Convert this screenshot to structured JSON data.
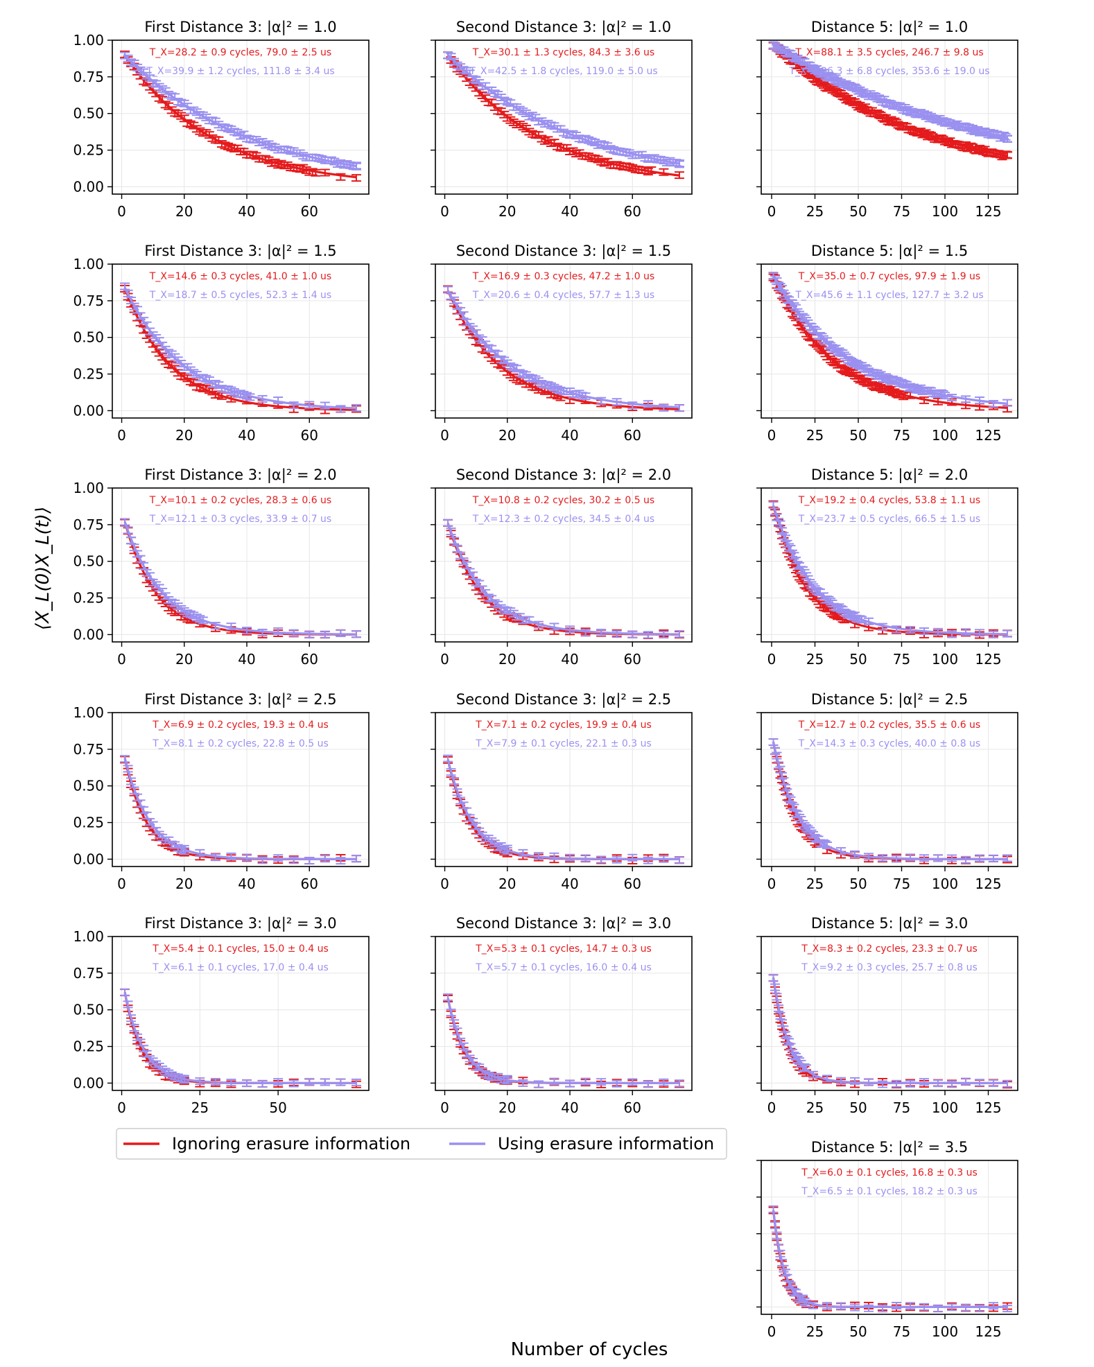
{
  "figure": {
    "ylabel": "⟨X_L(0)X_L(t)⟩",
    "xlabel": "Number of cycles",
    "legend": {
      "location": "upper-left of grid, below row 5",
      "entries": [
        {
          "label": "Ignoring erasure information",
          "color": "#e41a1c"
        },
        {
          "label": "Using erasure information",
          "color": "#9a90f0"
        }
      ]
    },
    "yticks": [
      "0.00",
      "0.25",
      "0.50",
      "0.75",
      "1.00"
    ],
    "colors": {
      "ignore": "#e41a1c",
      "use": "#9a90f0",
      "grid": "#e6e6e6",
      "axis": "#000000"
    }
  },
  "chart_data": [
    {
      "type": "line",
      "title": "First Distance 3: |α|² = 1.0",
      "xticks": [
        0,
        20,
        40,
        60
      ],
      "xlim": [
        -3,
        79
      ],
      "ylim": [
        -0.05,
        1.0
      ],
      "grid": true,
      "xmax": 75,
      "series": [
        {
          "name": "Ignoring erasure information",
          "y0": 0.9,
          "tau": 28.2,
          "annotation": "T_X=28.2 ± 0.9 cycles, 79.0 ± 2.5 us"
        },
        {
          "name": "Using erasure information",
          "y0": 0.9,
          "tau": 39.9,
          "annotation": "T_X=39.9 ± 1.2 cycles, 111.8 ± 3.4 us"
        }
      ]
    },
    {
      "type": "line",
      "title": "Second Distance 3: |α|² = 1.0",
      "xticks": [
        0,
        20,
        40,
        60
      ],
      "xlim": [
        -3,
        79
      ],
      "ylim": [
        -0.05,
        1.0
      ],
      "grid": true,
      "xmax": 75,
      "series": [
        {
          "name": "Ignoring erasure information",
          "y0": 0.9,
          "tau": 30.1,
          "annotation": "T_X=30.1 ± 1.3 cycles, 84.3 ± 3.6 us"
        },
        {
          "name": "Using erasure information",
          "y0": 0.9,
          "tau": 42.5,
          "annotation": "T_X=42.5 ± 1.8 cycles, 119.0 ± 5.0 us"
        }
      ]
    },
    {
      "type": "line",
      "title": "Distance 5: |α|² = 1.0",
      "xticks": [
        0,
        25,
        50,
        75,
        100,
        125
      ],
      "xlim": [
        -6,
        142
      ],
      "ylim": [
        -0.05,
        1.0
      ],
      "grid": true,
      "xmax": 136,
      "series": [
        {
          "name": "Ignoring erasure information",
          "y0": 0.97,
          "tau": 88.1,
          "annotation": "T_X=88.1 ± 3.5 cycles, 246.7 ± 9.8 us"
        },
        {
          "name": "Using erasure information",
          "y0": 0.97,
          "tau": 126.3,
          "annotation": "T_X=126.3 ± 6.8 cycles, 353.6 ± 19.0 us"
        }
      ]
    },
    {
      "type": "line",
      "title": "First Distance 3: |α|² = 1.5",
      "xticks": [
        0,
        20,
        40,
        60
      ],
      "xlim": [
        -3,
        79
      ],
      "ylim": [
        -0.05,
        1.0
      ],
      "grid": true,
      "xmax": 75,
      "series": [
        {
          "name": "Ignoring erasure information",
          "y0": 0.84,
          "tau": 14.6,
          "annotation": "T_X=14.6 ± 0.3 cycles, 41.0 ± 1.0 us"
        },
        {
          "name": "Using erasure information",
          "y0": 0.84,
          "tau": 18.7,
          "annotation": "T_X=18.7 ± 0.5 cycles, 52.3 ± 1.4 us"
        }
      ]
    },
    {
      "type": "line",
      "title": "Second Distance 3: |α|² = 1.5",
      "xticks": [
        0,
        20,
        40,
        60
      ],
      "xlim": [
        -3,
        79
      ],
      "ylim": [
        -0.05,
        1.0
      ],
      "grid": true,
      "xmax": 75,
      "series": [
        {
          "name": "Ignoring erasure information",
          "y0": 0.82,
          "tau": 16.9,
          "annotation": "T_X=16.9 ± 0.3 cycles, 47.2 ± 1.0 us"
        },
        {
          "name": "Using erasure information",
          "y0": 0.82,
          "tau": 20.6,
          "annotation": "T_X=20.6 ± 0.4 cycles, 57.7 ± 1.3 us"
        }
      ]
    },
    {
      "type": "line",
      "title": "Distance 5: |α|² = 1.5",
      "xticks": [
        0,
        25,
        50,
        75,
        100,
        125
      ],
      "xlim": [
        -6,
        142
      ],
      "ylim": [
        -0.05,
        1.0
      ],
      "grid": true,
      "xmax": 136,
      "series": [
        {
          "name": "Ignoring erasure information",
          "y0": 0.92,
          "tau": 35.0,
          "annotation": "T_X=35.0 ± 0.7 cycles, 97.9 ± 1.9 us"
        },
        {
          "name": "Using erasure information",
          "y0": 0.92,
          "tau": 45.6,
          "annotation": "T_X=45.6 ± 1.1 cycles, 127.7 ± 3.2 us"
        }
      ]
    },
    {
      "type": "line",
      "title": "First Distance 3: |α|² = 2.0",
      "xticks": [
        0,
        20,
        40,
        60
      ],
      "xlim": [
        -3,
        79
      ],
      "ylim": [
        -0.05,
        1.0
      ],
      "grid": true,
      "xmax": 75,
      "series": [
        {
          "name": "Ignoring erasure information",
          "y0": 0.77,
          "tau": 10.1,
          "annotation": "T_X=10.1 ± 0.2 cycles, 28.3 ± 0.6 us"
        },
        {
          "name": "Using erasure information",
          "y0": 0.77,
          "tau": 12.1,
          "annotation": "T_X=12.1 ± 0.3 cycles, 33.9 ± 0.7 us"
        }
      ]
    },
    {
      "type": "line",
      "title": "Second Distance 3: |α|² = 2.0",
      "xticks": [
        0,
        20,
        40,
        60
      ],
      "xlim": [
        -3,
        79
      ],
      "ylim": [
        -0.05,
        1.0
      ],
      "grid": true,
      "xmax": 75,
      "series": [
        {
          "name": "Ignoring erasure information",
          "y0": 0.76,
          "tau": 10.8,
          "annotation": "T_X=10.8 ± 0.2 cycles, 30.2 ± 0.5 us"
        },
        {
          "name": "Using erasure information",
          "y0": 0.76,
          "tau": 12.3,
          "annotation": "T_X=12.3 ± 0.2 cycles, 34.5 ± 0.4 us"
        }
      ]
    },
    {
      "type": "line",
      "title": "Distance 5: |α|² = 2.0",
      "xticks": [
        0,
        25,
        50,
        75,
        100,
        125
      ],
      "xlim": [
        -6,
        142
      ],
      "ylim": [
        -0.05,
        1.0
      ],
      "grid": true,
      "xmax": 136,
      "series": [
        {
          "name": "Ignoring erasure information",
          "y0": 0.88,
          "tau": 19.2,
          "annotation": "T_X=19.2 ± 0.4 cycles, 53.8 ± 1.1 us"
        },
        {
          "name": "Using erasure information",
          "y0": 0.88,
          "tau": 23.7,
          "annotation": "T_X=23.7 ± 0.5 cycles, 66.5 ± 1.5 us"
        }
      ]
    },
    {
      "type": "line",
      "title": "First Distance 3: |α|² = 2.5",
      "xticks": [
        0,
        20,
        40,
        60
      ],
      "xlim": [
        -3,
        79
      ],
      "ylim": [
        -0.05,
        1.0
      ],
      "grid": true,
      "xmax": 75,
      "series": [
        {
          "name": "Ignoring erasure information",
          "y0": 0.69,
          "tau": 6.9,
          "annotation": "T_X=6.9 ± 0.2 cycles, 19.3 ± 0.4 us"
        },
        {
          "name": "Using erasure information",
          "y0": 0.69,
          "tau": 8.1,
          "annotation": "T_X=8.1 ± 0.2 cycles, 22.8 ± 0.5 us"
        }
      ]
    },
    {
      "type": "line",
      "title": "Second Distance 3: |α|² = 2.5",
      "xticks": [
        0,
        20,
        40,
        60
      ],
      "xlim": [
        -3,
        79
      ],
      "ylim": [
        -0.05,
        1.0
      ],
      "grid": true,
      "xmax": 75,
      "series": [
        {
          "name": "Ignoring erasure information",
          "y0": 0.68,
          "tau": 7.1,
          "annotation": "T_X=7.1 ± 0.2 cycles, 19.9 ± 0.4 us"
        },
        {
          "name": "Using erasure information",
          "y0": 0.68,
          "tau": 7.9,
          "annotation": "T_X=7.9 ± 0.1 cycles, 22.1 ± 0.3 us"
        }
      ]
    },
    {
      "type": "line",
      "title": "Distance 5: |α|² = 2.5",
      "xticks": [
        0,
        25,
        50,
        75,
        100,
        125
      ],
      "xlim": [
        -6,
        142
      ],
      "ylim": [
        -0.05,
        1.0
      ],
      "grid": true,
      "xmax": 136,
      "series": [
        {
          "name": "Ignoring erasure information",
          "y0": 0.8,
          "tau": 12.7,
          "annotation": "T_X=12.7 ± 0.2 cycles, 35.5 ± 0.6 us"
        },
        {
          "name": "Using erasure information",
          "y0": 0.8,
          "tau": 14.3,
          "annotation": "T_X=14.3 ± 0.3 cycles, 40.0 ± 0.8 us"
        }
      ]
    },
    {
      "type": "line",
      "title": "First Distance 3: |α|² = 3.0",
      "xticks": [
        0,
        25,
        50
      ],
      "xlim": [
        -3,
        79
      ],
      "ylim": [
        -0.05,
        1.0
      ],
      "grid": true,
      "xmax": 75,
      "series": [
        {
          "name": "Ignoring erasure information",
          "y0": 0.62,
          "tau": 5.4,
          "annotation": "T_X=5.4 ± 0.1 cycles, 15.0 ± 0.4 us"
        },
        {
          "name": "Using erasure information",
          "y0": 0.62,
          "tau": 6.1,
          "annotation": "T_X=6.1 ± 0.1 cycles, 17.0 ± 0.4 us"
        }
      ]
    },
    {
      "type": "line",
      "title": "Second Distance 3: |α|² = 3.0",
      "xticks": [
        0,
        20,
        40,
        60
      ],
      "xlim": [
        -3,
        79
      ],
      "ylim": [
        -0.05,
        1.0
      ],
      "grid": true,
      "xmax": 75,
      "series": [
        {
          "name": "Ignoring erasure information",
          "y0": 0.58,
          "tau": 5.3,
          "annotation": "T_X=5.3 ± 0.1 cycles, 14.7 ± 0.3 us"
        },
        {
          "name": "Using erasure information",
          "y0": 0.58,
          "tau": 5.7,
          "annotation": "T_X=5.7 ± 0.1 cycles, 16.0 ± 0.4 us"
        }
      ]
    },
    {
      "type": "line",
      "title": "Distance 5: |α|² = 3.0",
      "xticks": [
        0,
        25,
        50,
        75,
        100,
        125
      ],
      "xlim": [
        -6,
        142
      ],
      "ylim": [
        -0.05,
        1.0
      ],
      "grid": true,
      "xmax": 136,
      "series": [
        {
          "name": "Ignoring erasure information",
          "y0": 0.72,
          "tau": 8.3,
          "annotation": "T_X=8.3 ± 0.2 cycles, 23.3 ± 0.7 us"
        },
        {
          "name": "Using erasure information",
          "y0": 0.72,
          "tau": 9.2,
          "annotation": "T_X=9.2 ± 0.3 cycles, 25.7 ± 0.8 us"
        }
      ]
    },
    {
      "type": "line",
      "title": "Distance 5: |α|² = 3.5",
      "xticks": [
        0,
        25,
        50,
        75,
        100,
        125
      ],
      "xlim": [
        -6,
        142
      ],
      "ylim": [
        -0.05,
        1.0
      ],
      "grid": true,
      "xmax": 136,
      "hide_ytick_labels": true,
      "series": [
        {
          "name": "Ignoring erasure information",
          "y0": 0.66,
          "tau": 6.0,
          "annotation": "T_X=6.0 ± 0.1 cycles, 16.8 ± 0.3 us"
        },
        {
          "name": "Using erasure information",
          "y0": 0.66,
          "tau": 6.5,
          "annotation": "T_X=6.5 ± 0.1 cycles, 18.2 ± 0.3 us"
        }
      ]
    }
  ]
}
